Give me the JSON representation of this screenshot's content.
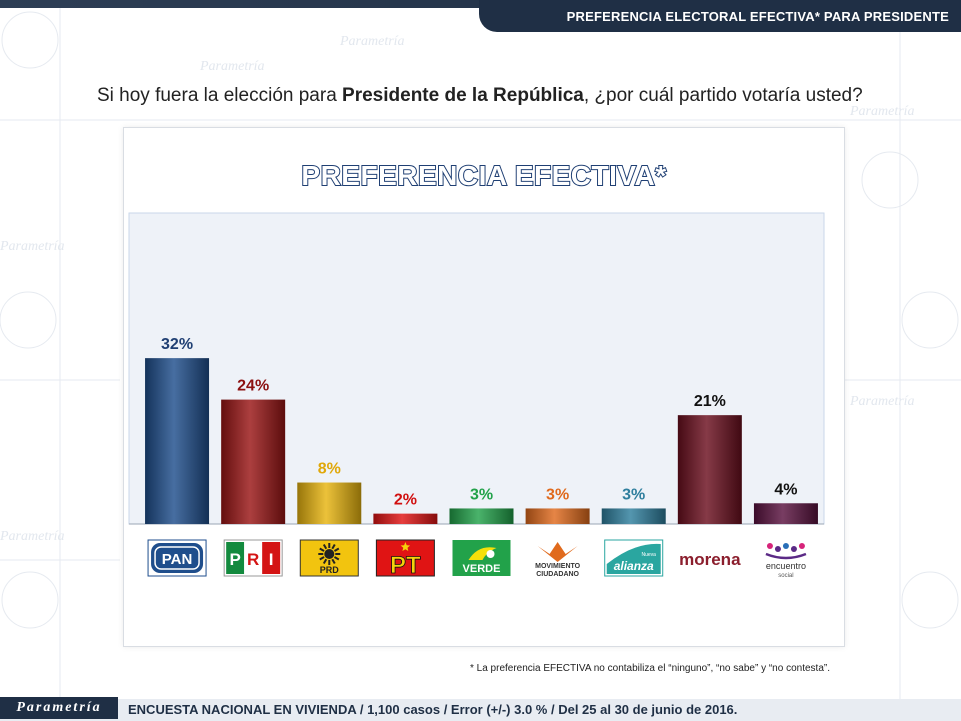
{
  "header": {
    "tab_title": "PREFERENCIA ELECTORAL  EFECTIVA* PARA PRESIDENTE"
  },
  "question": {
    "prefix": "Si hoy fuera la elección para ",
    "bold": "Presidente de la República",
    "suffix": ", ¿por cuál partido votaría usted?"
  },
  "chart_data": {
    "type": "bar",
    "title": "PREFERENCIA EFECTIVA*",
    "categories": [
      "PAN",
      "PRI",
      "PRD",
      "PT",
      "VERDE",
      "MOVIMIENTO CIUDADANO",
      "alianza",
      "morena",
      "encuentro social"
    ],
    "values": [
      32,
      24,
      8,
      2,
      3,
      3,
      3,
      21,
      4
    ],
    "value_labels": [
      "32%",
      "24%",
      "8%",
      "2%",
      "3%",
      "3%",
      "3%",
      "21%",
      "4%"
    ],
    "colors": [
      "#1f4e8c",
      "#9a1515",
      "#e8b40f",
      "#e01414",
      "#22a24a",
      "#e06a1d",
      "#2f7f9e",
      "#6b0f1e",
      "#5a1240"
    ],
    "label_colors": [
      "#1f3f73",
      "#8c1111",
      "#e0a80a",
      "#d11010",
      "#22a24a",
      "#e06a1d",
      "#2f7f9e",
      "#111111",
      "#111111"
    ],
    "ylim": [
      0,
      60
    ],
    "ylabel": "",
    "xlabel": "",
    "grid": false,
    "legend": "none"
  },
  "logos": {
    "pan": "PAN",
    "pri": "PRI",
    "prd": "PRD",
    "pt": "PT",
    "verde": "VERDE",
    "mc_line1": "MOVIMIENTO",
    "mc_line2": "CIUDADANO",
    "alianza": "alianza",
    "alianza_small": "Nueva",
    "morena": "morena",
    "es_line1": "encuentro",
    "es_line2": "social"
  },
  "footnote": "* La preferencia EFECTIVA no contabiliza el “ninguno”, “no sabe” y “no contesta”.",
  "footer": {
    "brand": "Parametría",
    "survey_info": "ENCUESTA NACIONAL EN VIVIENDA / 1,100 casos / Error (+/-) 3.0 % / Del 25 al 30 de junio de 2016."
  }
}
